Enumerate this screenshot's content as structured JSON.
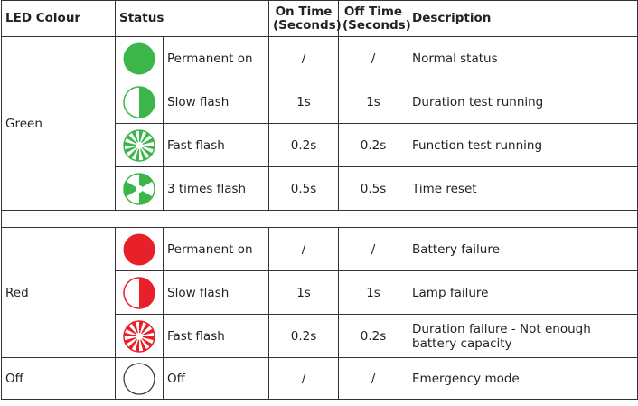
{
  "headers": {
    "colour": "LED Colour",
    "status": "Status",
    "on_time_1": "On Time",
    "on_time_2": "(Seconds)",
    "off_time_1": "Off Time",
    "off_time_2": "(Seconds)",
    "description": "Description"
  },
  "colors": {
    "green": "#3cb54a",
    "red": "#e8202a",
    "off": "#ffffff"
  },
  "groups": [
    {
      "colour": "Green",
      "rows": [
        {
          "icon": "led-green-permanent-icon",
          "status": "Permanent on",
          "on": "/",
          "off": "/",
          "description": "Normal status"
        },
        {
          "icon": "led-green-slow-flash-icon",
          "status": "Slow flash",
          "on": "1s",
          "off": "1s",
          "description": "Duration test running"
        },
        {
          "icon": "led-green-fast-flash-icon",
          "status": "Fast flash",
          "on": "0.2s",
          "off": "0.2s",
          "description": "Function test running"
        },
        {
          "icon": "led-green-3-times-flash-icon",
          "status": "3 times flash",
          "on": "0.5s",
          "off": "0.5s",
          "description": "Time reset"
        }
      ]
    },
    {
      "colour": "Red",
      "rows": [
        {
          "icon": "led-red-permanent-icon",
          "status": "Permanent on",
          "on": "/",
          "off": "/",
          "description": "Battery failure"
        },
        {
          "icon": "led-red-slow-flash-icon",
          "status": "Slow flash",
          "on": "1s",
          "off": "1s",
          "description": "Lamp failure"
        },
        {
          "icon": "led-red-fast-flash-icon",
          "status": "Fast flash",
          "on": "0.2s",
          "off": "0.2s",
          "description": "Duration failure - Not enough battery capacity"
        }
      ]
    },
    {
      "colour": "Off",
      "rows": [
        {
          "icon": "led-off-icon",
          "status": "Off",
          "on": "/",
          "off": "/",
          "description": "Emergency mode"
        }
      ]
    }
  ]
}
